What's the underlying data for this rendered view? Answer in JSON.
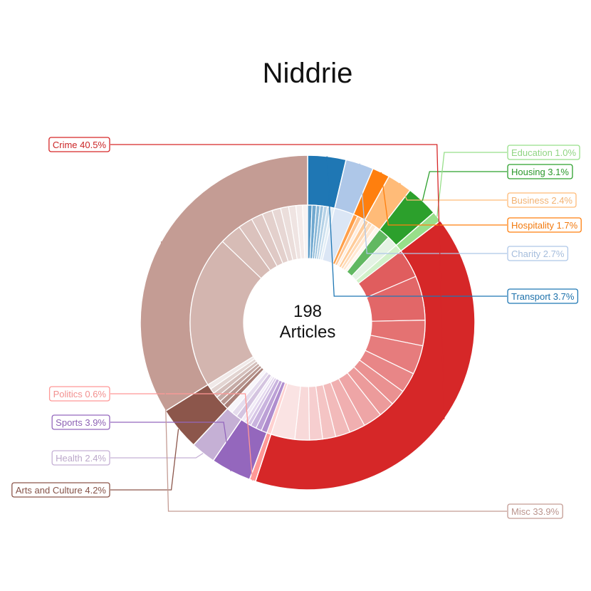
{
  "chart_data": {
    "type": "pie",
    "variant": "sunburst",
    "title": "Niddrie",
    "center": {
      "count": "198",
      "unit": "Articles"
    },
    "start_angle": 90,
    "categories": [
      {
        "label": "Transport 3.7%",
        "value": 3.7,
        "color": "#1f77b4",
        "sub": [
          0.6,
          0.6,
          0.5,
          0.5,
          0.5,
          0.5,
          0.5
        ]
      },
      {
        "label": "Charity 2.7%",
        "value": 2.7,
        "color": "#aec7e8",
        "sub": [
          2.7
        ]
      },
      {
        "label": "Hospitality 1.7%",
        "value": 1.7,
        "color": "#ff7f0e",
        "sub": [
          0.6,
          0.6,
          0.5
        ]
      },
      {
        "label": "Business 2.4%",
        "value": 2.4,
        "color": "#ffbb78",
        "sub": [
          0.6,
          0.6,
          0.6,
          0.6
        ]
      },
      {
        "label": "Housing 3.1%",
        "value": 3.1,
        "color": "#2ca02c",
        "sub": [
          1.6,
          1.5
        ]
      },
      {
        "label": "Education 1.0%",
        "value": 1.0,
        "color": "#98df8a",
        "sub": [
          1.0
        ]
      },
      {
        "label": "Crime 40.5%",
        "value": 40.5,
        "color": "#d62728",
        "sub": [
          4.0,
          6.1,
          3.5,
          4.0,
          2.8,
          2.2,
          2.2,
          2.6,
          2.2,
          2.0,
          1.8,
          1.8,
          2.0,
          3.3
        ]
      },
      {
        "label": "Politics 0.6%",
        "value": 0.6,
        "color": "#ff9896",
        "sub": [
          0.6
        ]
      },
      {
        "label": "Sports 3.9%",
        "value": 3.9,
        "color": "#9467bd",
        "sub": [
          0.8,
          0.8,
          0.8,
          0.5,
          0.5,
          0.5
        ]
      },
      {
        "label": "Health 2.4%",
        "value": 2.4,
        "color": "#c5b0d5",
        "sub": [
          0.8,
          0.8,
          0.8
        ]
      },
      {
        "label": "Arts and Culture 4.2%",
        "value": 4.2,
        "color": "#8c564b",
        "sub": [
          0.7,
          0.7,
          0.7,
          0.7,
          0.7,
          0.7
        ]
      },
      {
        "label": "Misc 33.9%",
        "value": 33.9,
        "color": "#c49c94",
        "sub": [
          21.0,
          3.0,
          2.0,
          1.6,
          1.4,
          1.2,
          1.1,
          1.0,
          0.9,
          0.7
        ]
      }
    ]
  }
}
